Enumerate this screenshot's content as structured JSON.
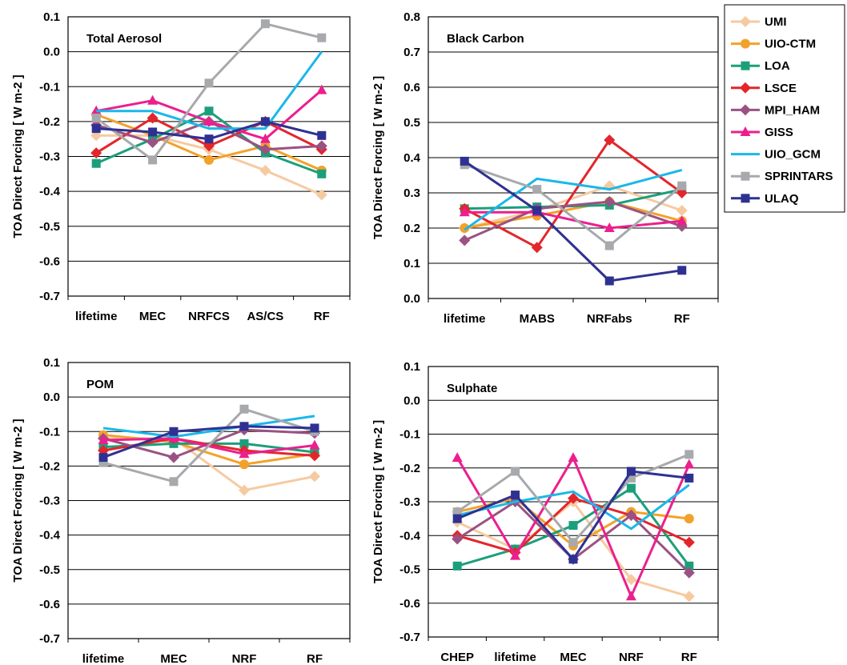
{
  "colors": {
    "UMI": "#f6caa0",
    "UIO-CTM": "#f2a22a",
    "LOA": "#1b9f7a",
    "LSCE": "#e3262c",
    "MPI_HAM": "#9a5283",
    "GISS": "#ec1f8e",
    "UIO_GCM": "#19b8ea",
    "SPRINTARS": "#a7a9ac",
    "ULAQ": "#2e3192"
  },
  "markers": {
    "UMI": "diamond",
    "UIO-CTM": "circle",
    "LOA": "square",
    "LSCE": "diamond",
    "MPI_HAM": "diamond",
    "GISS": "triangle",
    "UIO_GCM": "none",
    "SPRINTARS": "square",
    "ULAQ": "square"
  },
  "legend": {
    "items": [
      "UMI",
      "UIO-CTM",
      "LOA",
      "LSCE",
      "MPI_HAM",
      "GISS",
      "UIO_GCM",
      "SPRINTARS",
      "ULAQ"
    ]
  },
  "chart_data": [
    {
      "type": "line",
      "title": "Total  Aerosol",
      "ylabel": "TOA Direct Forcing [ W m-2 ]",
      "ylim": [
        -0.7,
        0.1
      ],
      "yticks": [
        "0.1",
        "0.0",
        "-0.1",
        "-0.2",
        "-0.3",
        "-0.4",
        "-0.5",
        "-0.6",
        "-0.7"
      ],
      "grid": true,
      "categories": [
        "lifetime",
        "MEC",
        "NRFCS",
        "AS/CS",
        "RF"
      ],
      "series": [
        {
          "name": "UMI",
          "values": [
            -0.24,
            -0.24,
            -0.28,
            -0.34,
            -0.41
          ]
        },
        {
          "name": "UIO-CTM",
          "values": [
            -0.18,
            -0.24,
            -0.31,
            -0.27,
            -0.34
          ]
        },
        {
          "name": "LOA",
          "values": [
            -0.32,
            -0.25,
            -0.17,
            -0.29,
            -0.35
          ]
        },
        {
          "name": "LSCE",
          "values": [
            -0.29,
            -0.19,
            -0.27,
            -0.2,
            -0.28
          ]
        },
        {
          "name": "MPI_HAM",
          "values": [
            -0.21,
            -0.26,
            -0.2,
            -0.28,
            -0.27
          ]
        },
        {
          "name": "GISS",
          "values": [
            -0.17,
            -0.14,
            -0.2,
            -0.25,
            -0.11
          ]
        },
        {
          "name": "UIO_GCM",
          "values": [
            -0.17,
            -0.17,
            -0.22,
            -0.22,
            0.0
          ]
        },
        {
          "name": "SPRINTARS",
          "values": [
            -0.19,
            -0.31,
            -0.09,
            0.08,
            0.04
          ]
        },
        {
          "name": "ULAQ",
          "values": [
            -0.22,
            -0.23,
            -0.25,
            -0.2,
            -0.24
          ]
        }
      ]
    },
    {
      "type": "line",
      "title": "Black Carbon",
      "ylabel": "TOA Direct Forcing [ W m-2 ]",
      "ylim": [
        0.0,
        0.8
      ],
      "yticks": [
        "0.8",
        "0.7",
        "0.6",
        "0.5",
        "0.4",
        "0.3",
        "0.2",
        "0.1",
        "0.0"
      ],
      "grid": true,
      "categories": [
        "lifetime",
        "MABS",
        "NRFabs",
        "RF"
      ],
      "series": [
        {
          "name": "UMI",
          "values": [
            0.2,
            0.25,
            0.32,
            0.25
          ]
        },
        {
          "name": "UIO-CTM",
          "values": [
            0.2,
            0.235,
            0.275,
            0.22
          ]
        },
        {
          "name": "LOA",
          "values": [
            0.255,
            0.26,
            0.265,
            0.31
          ]
        },
        {
          "name": "LSCE",
          "values": [
            0.255,
            0.145,
            0.45,
            0.3
          ]
        },
        {
          "name": "MPI_HAM",
          "values": [
            0.165,
            0.255,
            0.275,
            0.205
          ]
        },
        {
          "name": "GISS",
          "values": [
            0.245,
            0.245,
            0.2,
            0.22
          ]
        },
        {
          "name": "UIO_GCM",
          "values": [
            0.195,
            0.34,
            0.31,
            0.365
          ]
        },
        {
          "name": "SPRINTARS",
          "values": [
            0.38,
            0.31,
            0.15,
            0.32
          ]
        },
        {
          "name": "ULAQ",
          "values": [
            0.39,
            0.25,
            0.05,
            0.08
          ]
        }
      ]
    },
    {
      "type": "line",
      "title": "POM",
      "ylabel": "TOA Direct Forcing [ W m-2 ]",
      "ylim": [
        -0.7,
        0.1
      ],
      "yticks": [
        "0.1",
        "0.0",
        "-0.1",
        "-0.2",
        "-0.3",
        "-0.4",
        "-0.5",
        "-0.6",
        "-0.7"
      ],
      "grid": true,
      "categories": [
        "lifetime",
        "MEC",
        "NRF",
        "RF"
      ],
      "series": [
        {
          "name": "UMI",
          "values": [
            -0.12,
            -0.12,
            -0.27,
            -0.23
          ]
        },
        {
          "name": "UIO-CTM",
          "values": [
            -0.11,
            -0.13,
            -0.195,
            -0.165
          ]
        },
        {
          "name": "LOA",
          "values": [
            -0.145,
            -0.135,
            -0.135,
            -0.16
          ]
        },
        {
          "name": "LSCE",
          "values": [
            -0.155,
            -0.12,
            -0.155,
            -0.17
          ]
        },
        {
          "name": "MPI_HAM",
          "values": [
            -0.12,
            -0.175,
            -0.095,
            -0.105
          ]
        },
        {
          "name": "GISS",
          "values": [
            -0.125,
            -0.12,
            -0.165,
            -0.14
          ]
        },
        {
          "name": "UIO_GCM",
          "values": [
            -0.09,
            -0.115,
            -0.085,
            -0.055
          ]
        },
        {
          "name": "SPRINTARS",
          "values": [
            -0.19,
            -0.245,
            -0.035,
            -0.1
          ]
        },
        {
          "name": "ULAQ",
          "values": [
            -0.175,
            -0.1,
            -0.085,
            -0.09
          ]
        }
      ]
    },
    {
      "type": "line",
      "title": "Sulphate",
      "ylabel": "TOA Direct Forcing [ W m-2 ]",
      "ylim": [
        -0.7,
        0.1
      ],
      "yticks": [
        "0.1",
        "0.0",
        "-0.1",
        "-0.2",
        "-0.3",
        "-0.4",
        "-0.5",
        "-0.6",
        "-0.7"
      ],
      "grid": true,
      "categories": [
        "CHEP",
        "lifetime",
        "MEC",
        "NRF",
        "RF"
      ],
      "series": [
        {
          "name": "UMI",
          "values": [
            -0.36,
            -0.44,
            -0.3,
            -0.53,
            -0.58
          ]
        },
        {
          "name": "UIO-CTM",
          "values": [
            -0.33,
            -0.29,
            -0.43,
            -0.33,
            -0.35
          ]
        },
        {
          "name": "LOA",
          "values": [
            -0.49,
            -0.44,
            -0.37,
            -0.26,
            -0.49
          ]
        },
        {
          "name": "LSCE",
          "values": [
            -0.4,
            -0.45,
            -0.29,
            -0.34,
            -0.42
          ]
        },
        {
          "name": "MPI_HAM",
          "values": [
            -0.41,
            -0.3,
            -0.47,
            -0.34,
            -0.51
          ]
        },
        {
          "name": "GISS",
          "values": [
            -0.17,
            -0.46,
            -0.17,
            -0.58,
            -0.19
          ]
        },
        {
          "name": "UIO_GCM",
          "values": [
            -0.34,
            -0.3,
            -0.27,
            -0.38,
            -0.25
          ]
        },
        {
          "name": "SPRINTARS",
          "values": [
            -0.33,
            -0.21,
            -0.42,
            -0.23,
            -0.16
          ]
        },
        {
          "name": "ULAQ",
          "values": [
            -0.35,
            -0.28,
            -0.47,
            -0.21,
            -0.23
          ]
        }
      ]
    }
  ]
}
